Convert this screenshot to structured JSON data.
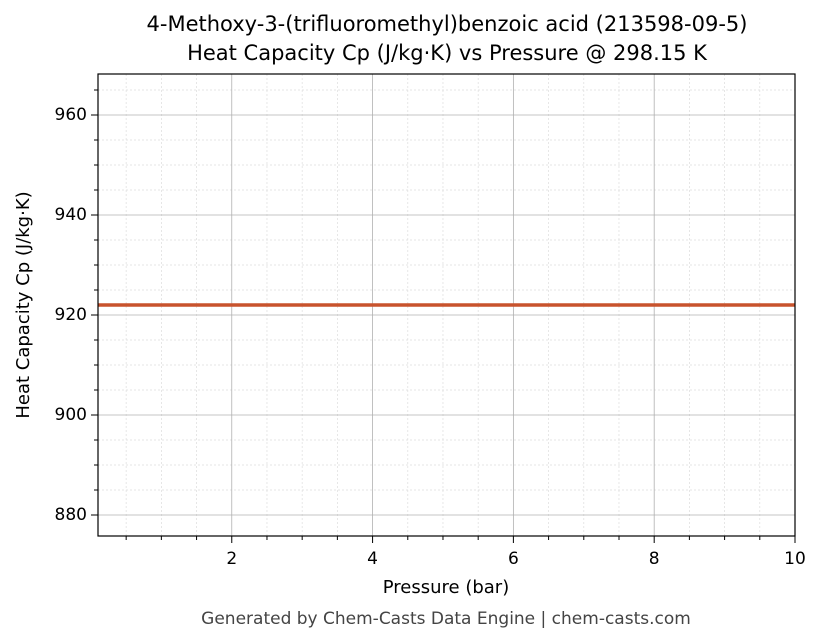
{
  "chart_data": {
    "type": "line",
    "title": "4-Methoxy-3-(trifluoromethyl)benzoic acid (213598-09-5)",
    "subtitle": "Heat Capacity Cp (J/kg·K) vs Pressure @ 298.15 K",
    "x_label": "Pressure (bar)",
    "y_label": "Heat Capacity Cp (J/kg·K)",
    "footer": "Generated by Chem-Casts Data Engine | chem-casts.com",
    "x": [
      0.1,
      10
    ],
    "series": [
      {
        "name": "Cp",
        "color": "#c8532d",
        "values": [
          922,
          922
        ]
      }
    ],
    "xlim": [
      0.1,
      10
    ],
    "ylim": [
      875.8,
      968.2
    ],
    "xticks": [
      2,
      4,
      6,
      8,
      10
    ],
    "yticks": [
      880,
      900,
      920,
      940,
      960
    ],
    "xminorticks": [
      0.5,
      1,
      1.5,
      2.5,
      3,
      3.5,
      4.5,
      5,
      5.5,
      6.5,
      7,
      7.5,
      8.5,
      9,
      9.5
    ],
    "yminorticks": [
      885,
      890,
      895,
      905,
      910,
      915,
      925,
      930,
      935,
      945,
      950,
      955,
      965
    ],
    "grid": true,
    "minor_grid": true
  }
}
